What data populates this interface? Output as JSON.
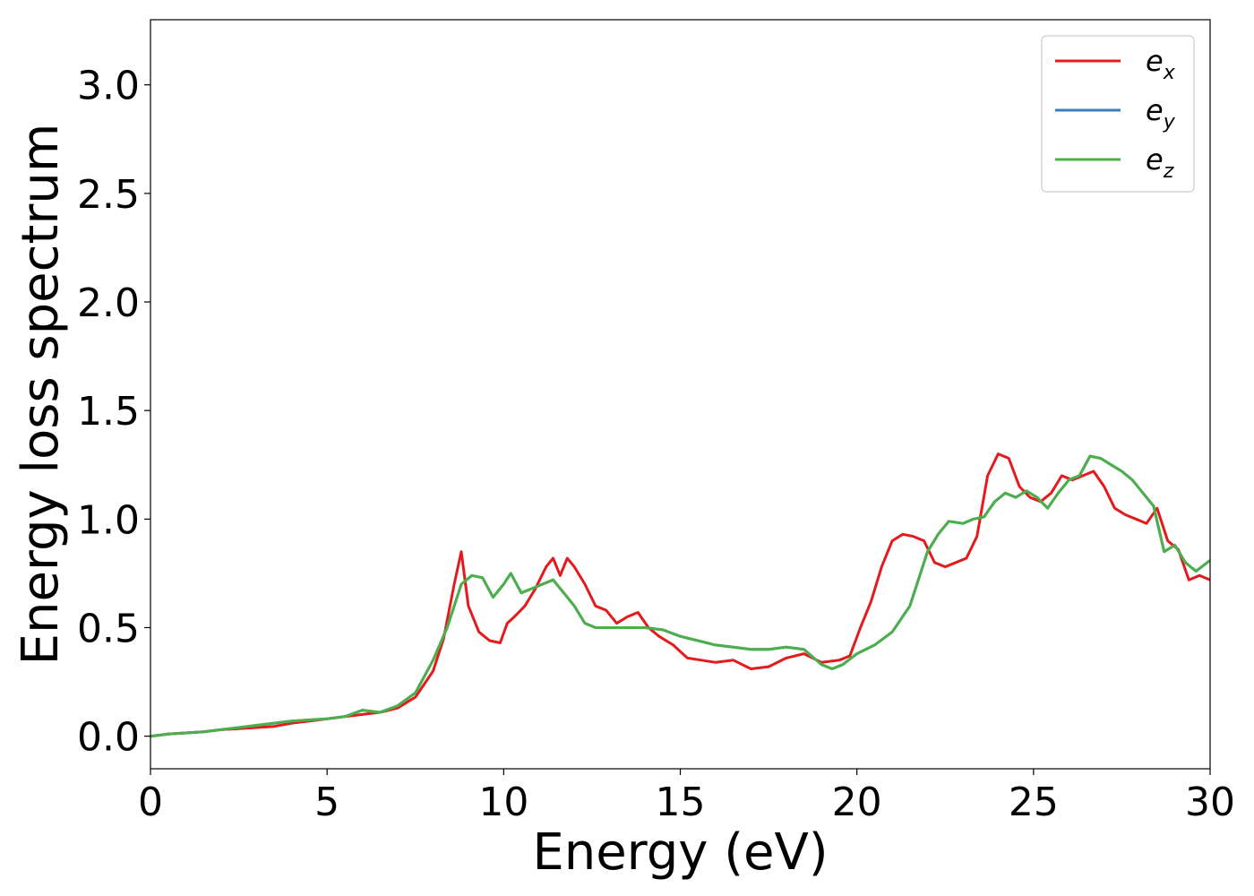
{
  "chart_data": {
    "type": "line",
    "xlabel": "Energy (eV)",
    "ylabel": "Energy loss spectrum",
    "xlim": [
      0,
      30
    ],
    "ylim": [
      -0.15,
      3.3
    ],
    "xticks": [
      "0",
      "5",
      "10",
      "15",
      "20",
      "25",
      "30"
    ],
    "yticks": [
      "0.0",
      "0.5",
      "1.0",
      "1.5",
      "2.0",
      "2.5",
      "3.0"
    ],
    "grid": false,
    "legend_position": "top-right",
    "series": [
      {
        "name": "e",
        "subscript": "x",
        "color": "#e41a1c",
        "x": [
          0,
          0.5,
          1,
          1.5,
          2,
          2.5,
          3,
          3.5,
          4,
          4.5,
          5,
          5.5,
          6,
          6.5,
          7,
          7.5,
          8,
          8.3,
          8.6,
          8.8,
          9,
          9.3,
          9.6,
          9.9,
          10.1,
          10.3,
          10.6,
          10.9,
          11.2,
          11.4,
          11.6,
          11.8,
          12,
          12.3,
          12.6,
          12.9,
          13.2,
          13.5,
          13.8,
          14.1,
          14.4,
          14.8,
          15.2,
          15.6,
          16,
          16.5,
          17,
          17.5,
          18,
          18.5,
          19,
          19.5,
          19.8,
          20.1,
          20.4,
          20.7,
          21,
          21.3,
          21.6,
          21.9,
          22.2,
          22.5,
          22.8,
          23.1,
          23.4,
          23.7,
          24,
          24.3,
          24.6,
          24.9,
          25.2,
          25.5,
          25.8,
          26.1,
          26.4,
          26.7,
          27,
          27.3,
          27.6,
          27.9,
          28.2,
          28.5,
          28.8,
          29.1,
          29.4,
          29.7,
          30
        ],
        "values": [
          0.0,
          0.01,
          0.015,
          0.02,
          0.03,
          0.035,
          0.04,
          0.045,
          0.06,
          0.07,
          0.08,
          0.09,
          0.1,
          0.11,
          0.13,
          0.18,
          0.3,
          0.45,
          0.7,
          0.85,
          0.6,
          0.48,
          0.44,
          0.43,
          0.52,
          0.55,
          0.6,
          0.68,
          0.78,
          0.82,
          0.74,
          0.82,
          0.78,
          0.7,
          0.6,
          0.58,
          0.52,
          0.55,
          0.57,
          0.5,
          0.46,
          0.42,
          0.36,
          0.35,
          0.34,
          0.35,
          0.31,
          0.32,
          0.36,
          0.38,
          0.34,
          0.35,
          0.37,
          0.5,
          0.62,
          0.78,
          0.9,
          0.93,
          0.92,
          0.9,
          0.8,
          0.78,
          0.8,
          0.82,
          0.92,
          1.2,
          1.3,
          1.28,
          1.15,
          1.1,
          1.08,
          1.12,
          1.2,
          1.18,
          1.2,
          1.22,
          1.15,
          1.05,
          1.02,
          1.0,
          0.98,
          1.05,
          0.9,
          0.86,
          0.72,
          0.74,
          0.72
        ]
      },
      {
        "name": "e",
        "subscript": "y",
        "color": "#377eb8",
        "x": [
          0,
          0.5,
          1,
          1.5,
          2,
          2.5,
          3,
          3.5,
          4,
          4.5,
          5,
          5.5,
          6,
          6.5,
          7,
          7.5,
          8,
          8.4,
          8.8,
          9.1,
          9.4,
          9.7,
          10,
          10.2,
          10.5,
          10.8,
          11.1,
          11.4,
          11.7,
          12,
          12.3,
          12.6,
          13,
          13.5,
          14,
          14.5,
          15,
          15.5,
          16,
          16.5,
          17,
          17.5,
          18,
          18.5,
          19,
          19.3,
          19.6,
          20,
          20.5,
          21,
          21.5,
          22,
          22.3,
          22.6,
          23,
          23.3,
          23.6,
          23.9,
          24.2,
          24.5,
          24.8,
          25.1,
          25.4,
          25.7,
          26,
          26.3,
          26.6,
          26.9,
          27.2,
          27.5,
          27.8,
          28.1,
          28.4,
          28.7,
          29,
          29.3,
          29.6,
          30
        ],
        "values": [
          0.0,
          0.01,
          0.015,
          0.02,
          0.03,
          0.04,
          0.05,
          0.06,
          0.07,
          0.075,
          0.08,
          0.09,
          0.12,
          0.11,
          0.14,
          0.2,
          0.35,
          0.5,
          0.7,
          0.74,
          0.73,
          0.64,
          0.7,
          0.75,
          0.66,
          0.68,
          0.7,
          0.72,
          0.66,
          0.6,
          0.52,
          0.5,
          0.5,
          0.5,
          0.5,
          0.49,
          0.46,
          0.44,
          0.42,
          0.41,
          0.4,
          0.4,
          0.41,
          0.4,
          0.33,
          0.31,
          0.33,
          0.38,
          0.42,
          0.48,
          0.6,
          0.85,
          0.93,
          0.99,
          0.98,
          1.0,
          1.01,
          1.08,
          1.12,
          1.1,
          1.13,
          1.1,
          1.05,
          1.12,
          1.18,
          1.2,
          1.29,
          1.28,
          1.25,
          1.22,
          1.18,
          1.12,
          1.06,
          0.85,
          0.88,
          0.8,
          0.76,
          0.81
        ]
      },
      {
        "name": "e",
        "subscript": "z",
        "color": "#4daf4a",
        "x": [
          0,
          0.5,
          1,
          1.5,
          2,
          2.5,
          3,
          3.5,
          4,
          4.5,
          5,
          5.5,
          6,
          6.5,
          7,
          7.5,
          8,
          8.4,
          8.8,
          9.1,
          9.4,
          9.7,
          10,
          10.2,
          10.5,
          10.8,
          11.1,
          11.4,
          11.7,
          12,
          12.3,
          12.6,
          13,
          13.5,
          14,
          14.5,
          15,
          15.5,
          16,
          16.5,
          17,
          17.5,
          18,
          18.5,
          19,
          19.3,
          19.6,
          20,
          20.5,
          21,
          21.5,
          22,
          22.3,
          22.6,
          23,
          23.3,
          23.6,
          23.9,
          24.2,
          24.5,
          24.8,
          25.1,
          25.4,
          25.7,
          26,
          26.3,
          26.6,
          26.9,
          27.2,
          27.5,
          27.8,
          28.1,
          28.4,
          28.7,
          29,
          29.3,
          29.6,
          30
        ],
        "values": [
          0.0,
          0.01,
          0.015,
          0.02,
          0.03,
          0.04,
          0.05,
          0.06,
          0.07,
          0.075,
          0.08,
          0.09,
          0.12,
          0.11,
          0.14,
          0.2,
          0.35,
          0.5,
          0.7,
          0.74,
          0.73,
          0.64,
          0.7,
          0.75,
          0.66,
          0.68,
          0.7,
          0.72,
          0.66,
          0.6,
          0.52,
          0.5,
          0.5,
          0.5,
          0.5,
          0.49,
          0.46,
          0.44,
          0.42,
          0.41,
          0.4,
          0.4,
          0.41,
          0.4,
          0.33,
          0.31,
          0.33,
          0.38,
          0.42,
          0.48,
          0.6,
          0.85,
          0.93,
          0.99,
          0.98,
          1.0,
          1.01,
          1.08,
          1.12,
          1.1,
          1.13,
          1.1,
          1.05,
          1.12,
          1.18,
          1.2,
          1.29,
          1.28,
          1.25,
          1.22,
          1.18,
          1.12,
          1.06,
          0.85,
          0.88,
          0.8,
          0.76,
          0.81
        ]
      }
    ]
  }
}
